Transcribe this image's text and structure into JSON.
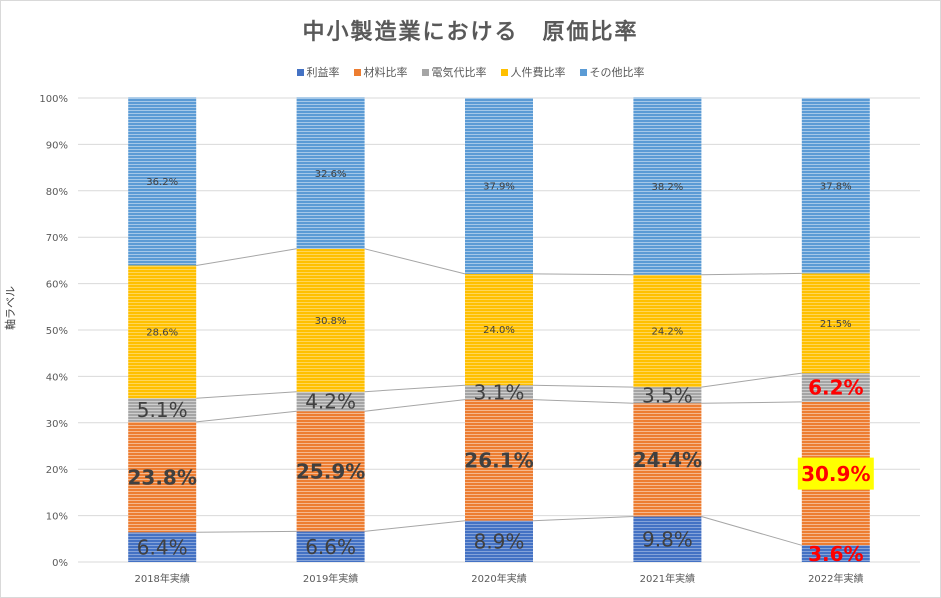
{
  "chart_data": {
    "type": "bar",
    "stacked": true,
    "percent": true,
    "title": "中小製造業における　原価比率",
    "ylabel": "軸ラベル",
    "xlabel": "",
    "ylim": [
      0,
      100
    ],
    "yticks": [
      "0%",
      "10%",
      "20%",
      "30%",
      "40%",
      "50%",
      "60%",
      "70%",
      "80%",
      "90%",
      "100%"
    ],
    "categories": [
      "2018年実績",
      "2019年実績",
      "2020年実績",
      "2021年実績",
      "2022年実績"
    ],
    "legend_position": "top",
    "grid": true,
    "series": [
      {
        "name": "利益率",
        "color": "#4472C4",
        "values": [
          6.4,
          6.6,
          8.9,
          9.8,
          3.6
        ],
        "labels": [
          "6.4%",
          "6.6%",
          "8.9%",
          "9.8%",
          "3.6%"
        ]
      },
      {
        "name": "材料比率",
        "color": "#ED7D31",
        "values": [
          23.8,
          25.9,
          26.1,
          24.4,
          30.9
        ],
        "labels": [
          "23.8%",
          "25.9%",
          "26.1%",
          "24.4%",
          "30.9%"
        ]
      },
      {
        "name": "電気代比率",
        "color": "#A5A5A5",
        "values": [
          5.1,
          4.2,
          3.1,
          3.5,
          6.2
        ],
        "labels": [
          "5.1%",
          "4.2%",
          "3.1%",
          "3.5%",
          "6.2%"
        ]
      },
      {
        "name": "人件費比率",
        "color": "#FFC000",
        "values": [
          28.6,
          30.8,
          24.0,
          24.2,
          21.5
        ],
        "labels": [
          "28.6%",
          "30.8%",
          "24.0%",
          "24.2%",
          "21.5%"
        ]
      },
      {
        "name": "その他比率",
        "color": "#5B9BD5",
        "values": [
          36.2,
          32.6,
          37.9,
          38.2,
          37.8
        ],
        "labels": [
          "36.2%",
          "32.6%",
          "37.9%",
          "38.2%",
          "37.8%"
        ]
      }
    ],
    "highlight": {
      "category_index": 4,
      "color": "#FF0000",
      "box_color": "#FFFF00",
      "box_series_index": 1
    }
  }
}
